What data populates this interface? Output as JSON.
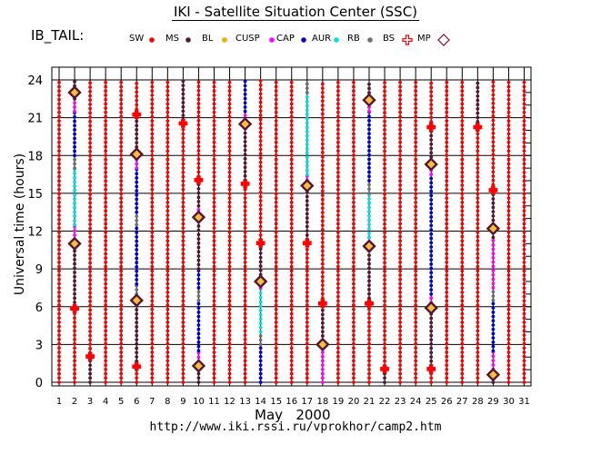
{
  "title": "IKI - Satellite Situation Center (SSC)",
  "mission": "IB_TAIL:",
  "x_label_month": "May",
  "x_label_year": "2000",
  "url": "http://www.iki.rssi.ru/vprokhor/camp2.htm",
  "chart_data": {
    "type": "scatter",
    "title": "IKI - Satellite Situation Center (SSC)",
    "xlabel": "May   2000",
    "ylabel": "Universal time (hours)",
    "xlim": [
      1,
      31
    ],
    "ylim": [
      0,
      24
    ],
    "xticks": [
      1,
      2,
      3,
      4,
      5,
      6,
      7,
      8,
      9,
      10,
      11,
      12,
      13,
      14,
      15,
      16,
      17,
      18,
      19,
      20,
      21,
      22,
      23,
      24,
      25,
      26,
      27,
      28,
      29,
      30,
      31
    ],
    "yticks": [
      0,
      3,
      6,
      9,
      12,
      15,
      18,
      21,
      24
    ],
    "grid": true,
    "legend": [
      {
        "label": "SW",
        "color": "#ff0000",
        "marker": "dot"
      },
      {
        "label": "MS",
        "color": "#5a1430",
        "marker": "dot"
      },
      {
        "label": "BL",
        "color": "#f0a800",
        "marker": "dot"
      },
      {
        "label": "CUSP",
        "color": "#ff00ff",
        "marker": "dot"
      },
      {
        "label": "CAP",
        "color": "#0000dd",
        "marker": "dot"
      },
      {
        "label": "AUR",
        "color": "#00e0e0",
        "marker": "dot"
      },
      {
        "label": "RB",
        "color": "#707070",
        "marker": "dot"
      },
      {
        "label": "BS",
        "color": "#ff0000",
        "marker": "cross"
      },
      {
        "label": "MP",
        "color": "#7a1030",
        "marker": "diamond"
      }
    ],
    "days": [
      {
        "x": 1,
        "segments": [
          [
            "SW",
            0,
            24
          ]
        ]
      },
      {
        "x": 2,
        "segments": [
          [
            "SW",
            0,
            6
          ],
          [
            "MS",
            6,
            11
          ],
          [
            "CUSP",
            11,
            12.5
          ],
          [
            "AUR",
            12.5,
            17
          ],
          [
            "RB",
            17,
            18
          ],
          [
            "CAP",
            18,
            21.5
          ],
          [
            "CUSP",
            21.5,
            22.5
          ],
          [
            "MS",
            22.5,
            24
          ]
        ]
      },
      {
        "x": 3,
        "segments": [
          [
            "MS",
            0,
            2
          ],
          [
            "SW",
            2,
            24
          ]
        ]
      },
      {
        "x": 4,
        "segments": [
          [
            "SW",
            0,
            24
          ]
        ]
      },
      {
        "x": 5,
        "segments": [
          [
            "SW",
            0,
            24
          ]
        ]
      },
      {
        "x": 6,
        "segments": [
          [
            "SW",
            0,
            1
          ],
          [
            "MS",
            1,
            6.5
          ],
          [
            "CUSP",
            6.5,
            7
          ],
          [
            "RB",
            7,
            7.8
          ],
          [
            "CAP",
            7.8,
            12.5
          ],
          [
            "RB",
            12.5,
            13.5
          ],
          [
            "CAP",
            13.5,
            17
          ],
          [
            "CUSP",
            17,
            18
          ],
          [
            "MS",
            18,
            21
          ],
          [
            "SW",
            21,
            24
          ]
        ]
      },
      {
        "x": 7,
        "segments": [
          [
            "SW",
            0,
            24
          ]
        ]
      },
      {
        "x": 8,
        "segments": [
          [
            "SW",
            0,
            24
          ]
        ]
      },
      {
        "x": 9,
        "segments": [
          [
            "SW",
            0,
            20.5
          ],
          [
            "MS",
            20.5,
            24
          ]
        ]
      },
      {
        "x": 10,
        "segments": [
          [
            "MS",
            0,
            1.3
          ],
          [
            "CUSP",
            1.3,
            2.5
          ],
          [
            "CAP",
            2.5,
            6.5
          ],
          [
            "RB",
            6.5,
            7.5
          ],
          [
            "CAP",
            7.5,
            9
          ],
          [
            "MS",
            9,
            13
          ],
          [
            "CUSP",
            13,
            14
          ],
          [
            "MS",
            14,
            16
          ],
          [
            "SW",
            16,
            24
          ]
        ]
      },
      {
        "x": 11,
        "segments": [
          [
            "SW",
            0,
            24
          ]
        ]
      },
      {
        "x": 12,
        "segments": [
          [
            "SW",
            0,
            24
          ]
        ]
      },
      {
        "x": 13,
        "segments": [
          [
            "SW",
            0,
            15.7
          ],
          [
            "MS",
            15.7,
            20.5
          ],
          [
            "CUSP",
            20.5,
            21.5
          ],
          [
            "CAP",
            21.5,
            24
          ]
        ]
      },
      {
        "x": 14,
        "segments": [
          [
            "CAP",
            0,
            3
          ],
          [
            "RB",
            3,
            4
          ],
          [
            "AUR",
            4,
            7.5
          ],
          [
            "CUSP",
            7.5,
            8.2
          ],
          [
            "MS",
            8.2,
            11
          ],
          [
            "SW",
            11,
            24
          ]
        ]
      },
      {
        "x": 15,
        "segments": [
          [
            "SW",
            0,
            24
          ]
        ]
      },
      {
        "x": 16,
        "segments": [
          [
            "SW",
            0,
            24
          ]
        ]
      },
      {
        "x": 17,
        "segments": [
          [
            "SW",
            0,
            11
          ],
          [
            "MS",
            11,
            15.7
          ],
          [
            "CUSP",
            15.7,
            16.5
          ],
          [
            "AUR",
            16.5,
            23
          ],
          [
            "RB",
            23,
            24
          ]
        ]
      },
      {
        "x": 18,
        "segments": [
          [
            "CUSP",
            0,
            3
          ],
          [
            "MS",
            3,
            6
          ],
          [
            "SW",
            6,
            24
          ]
        ]
      },
      {
        "x": 19,
        "segments": [
          [
            "SW",
            0,
            24
          ]
        ]
      },
      {
        "x": 20,
        "segments": [
          [
            "SW",
            0,
            24
          ]
        ]
      },
      {
        "x": 21,
        "segments": [
          [
            "SW",
            0,
            6
          ],
          [
            "MS",
            6,
            10.8
          ],
          [
            "CUSP",
            10.8,
            11.5
          ],
          [
            "AUR",
            11.5,
            15
          ],
          [
            "RB",
            15,
            16
          ],
          [
            "CAP",
            16,
            21.5
          ],
          [
            "CUSP",
            21.5,
            22.3
          ],
          [
            "MS",
            22.3,
            24
          ]
        ]
      },
      {
        "x": 22,
        "segments": [
          [
            "MS",
            0,
            1
          ],
          [
            "SW",
            1,
            24
          ]
        ]
      },
      {
        "x": 23,
        "segments": [
          [
            "SW",
            0,
            24
          ]
        ]
      },
      {
        "x": 24,
        "segments": [
          [
            "SW",
            0,
            24
          ]
        ]
      },
      {
        "x": 25,
        "segments": [
          [
            "SW",
            0,
            1
          ],
          [
            "MS",
            1,
            6
          ],
          [
            "CUSP",
            6,
            7
          ],
          [
            "CAP",
            7,
            16.5
          ],
          [
            "CUSP",
            16.5,
            17.2
          ],
          [
            "MS",
            17.2,
            20
          ],
          [
            "SW",
            20,
            24
          ]
        ]
      },
      {
        "x": 26,
        "segments": [
          [
            "SW",
            0,
            24
          ]
        ]
      },
      {
        "x": 27,
        "segments": [
          [
            "SW",
            0,
            24
          ]
        ]
      },
      {
        "x": 28,
        "segments": [
          [
            "SW",
            0,
            20
          ],
          [
            "MS",
            20,
            24
          ]
        ]
      },
      {
        "x": 29,
        "segments": [
          [
            "MS",
            0,
            0.7
          ],
          [
            "CUSP",
            0.7,
            2.5
          ],
          [
            "CAP",
            2.5,
            6.5
          ],
          [
            "RB",
            6.5,
            7.5
          ],
          [
            "CUSP",
            7.5,
            11.5
          ],
          [
            "MS",
            11.5,
            15
          ],
          [
            "SW",
            15,
            24
          ]
        ]
      },
      {
        "x": 30,
        "segments": [
          [
            "SW",
            0,
            24
          ]
        ]
      },
      {
        "x": 31,
        "segments": [
          [
            "SW",
            0,
            24
          ]
        ]
      }
    ],
    "bs_crossings": [
      [
        2,
        5.8
      ],
      [
        3,
        2.0
      ],
      [
        6,
        1.2
      ],
      [
        6,
        21.2
      ],
      [
        9,
        20.5
      ],
      [
        10,
        16.0
      ],
      [
        13,
        15.7
      ],
      [
        14,
        11.0
      ],
      [
        17,
        11.0
      ],
      [
        18,
        6.2
      ],
      [
        21,
        6.2
      ],
      [
        22,
        1.0
      ],
      [
        25,
        1.0
      ],
      [
        25,
        20.2
      ],
      [
        28,
        20.2
      ],
      [
        29,
        15.2
      ]
    ],
    "mp_crossings": [
      [
        2,
        11.0
      ],
      [
        2,
        23.0
      ],
      [
        6,
        6.5
      ],
      [
        6,
        18.1
      ],
      [
        10,
        1.3
      ],
      [
        10,
        13.1
      ],
      [
        13,
        20.5
      ],
      [
        14,
        8.0
      ],
      [
        17,
        15.6
      ],
      [
        18,
        3.0
      ],
      [
        21,
        10.8
      ],
      [
        21,
        22.4
      ],
      [
        25,
        5.9
      ],
      [
        25,
        17.3
      ],
      [
        29,
        0.6
      ],
      [
        29,
        12.2
      ]
    ]
  }
}
